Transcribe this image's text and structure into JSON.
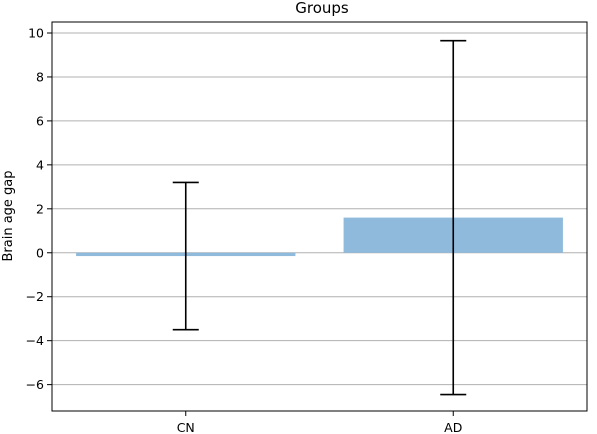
{
  "chart_data": {
    "type": "bar",
    "title": "Groups",
    "xlabel": "",
    "ylabel": "Brain age gap",
    "categories": [
      "CN",
      "AD"
    ],
    "values": [
      -0.15,
      1.6
    ],
    "error_low": [
      -3.5,
      -6.45
    ],
    "error_high": [
      3.2,
      9.65
    ],
    "ylim": [
      -7.2,
      10.5
    ],
    "yticks": [
      -6,
      -4,
      -2,
      0,
      2,
      4,
      6,
      8,
      10
    ],
    "ytick_labels": [
      "−6",
      "−4",
      "−2",
      "0",
      "2",
      "4",
      "6",
      "8",
      "10"
    ],
    "grid": true,
    "legend": false,
    "bar_color": "#8fbadc",
    "grid_color": "#b0b0b0",
    "errorbar_color": "#000000"
  }
}
